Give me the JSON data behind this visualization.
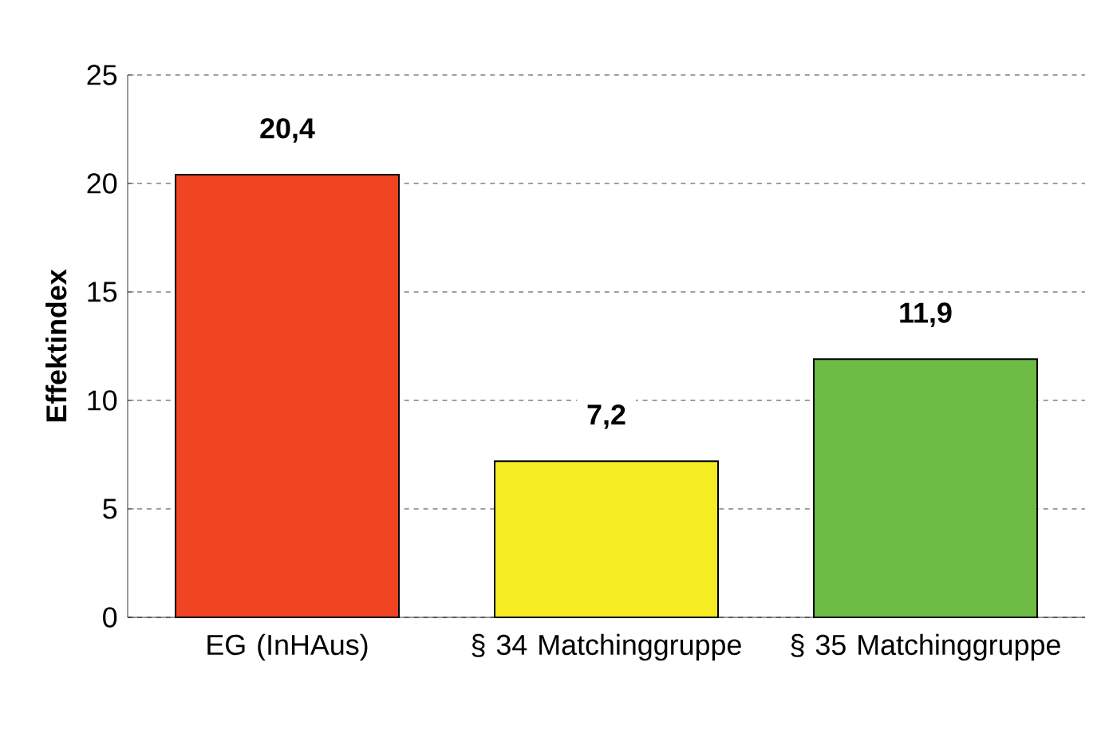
{
  "chart_data": {
    "type": "bar",
    "ylabel": "Effektindex",
    "categories": [
      "EG (InHAus)",
      "§ 34 Matchinggruppe",
      "§ 35 Matchinggruppe"
    ],
    "values": [
      20.4,
      7.2,
      11.9
    ],
    "value_labels": [
      "20,4",
      "7,2",
      "11,9"
    ],
    "colors": [
      "#f04423",
      "#f5ec23",
      "#6cbb45"
    ],
    "ylim": [
      0,
      25
    ],
    "yticks": [
      0,
      5,
      10,
      15,
      20,
      25
    ],
    "grid": "y"
  }
}
